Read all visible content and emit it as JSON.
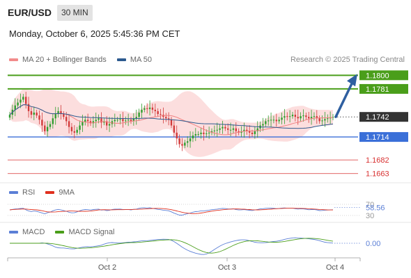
{
  "header": {
    "symbol": "EUR/USD",
    "timeframe": "30 MIN",
    "datetime": "Monday, October 6, 2025 5:45:36 PM CET"
  },
  "legend_main": [
    {
      "label": "MA 20 + Bollinger Bands",
      "color": "#f28b8b"
    },
    {
      "label": "MA 50",
      "color": "#2c5a8f"
    }
  ],
  "legend_rsi": [
    {
      "label": "RSI",
      "color": "#5b7fd6"
    },
    {
      "label": "9MA",
      "color": "#e0301e"
    }
  ],
  "legend_macd": [
    {
      "label": "MACD",
      "color": "#5b7fd6"
    },
    {
      "label": "MACD Signal",
      "color": "#4a9e1a"
    }
  ],
  "research": "Research © 2025 Trading Central",
  "colors": {
    "resistance": "#4a9e1a",
    "support": "#3a6fd8",
    "level_red": "#d83030",
    "current": "#333333",
    "arrow": "#2f5fa0",
    "bull": "#2e9e2e",
    "bear": "#d23a3a",
    "band_fill": "#fbd3d3"
  },
  "chart_data": [
    {
      "type": "candlestick",
      "x_ticks": [
        "Oct 2",
        "Oct 3",
        "Oct 4"
      ],
      "ylim": [
        1.1655,
        1.181
      ],
      "levels": [
        {
          "value": 1.18,
          "label": "1.1800",
          "kind": "resistance"
        },
        {
          "value": 1.1781,
          "label": "1.1781",
          "kind": "resistance"
        },
        {
          "value": 1.1742,
          "label": "1.1742",
          "kind": "current"
        },
        {
          "value": 1.1714,
          "label": "1.1714",
          "kind": "support"
        },
        {
          "value": 1.1682,
          "label": "1.1682",
          "kind": "target"
        },
        {
          "value": 1.1663,
          "label": "1.1663",
          "kind": "target"
        }
      ],
      "close": [
        1.1745,
        1.1752,
        1.1758,
        1.1762,
        1.1766,
        1.177,
        1.176,
        1.175,
        1.1745,
        1.1748,
        1.1744,
        1.1738,
        1.173,
        1.1722,
        1.1728,
        1.1732,
        1.174,
        1.1746,
        1.175,
        1.1746,
        1.1742,
        1.1736,
        1.1728,
        1.1722,
        1.172,
        1.1724,
        1.173,
        1.1735,
        1.1738,
        1.1736,
        1.1733,
        1.1736,
        1.1738,
        1.174,
        1.1734,
        1.1736,
        1.173,
        1.1732,
        1.1736,
        1.1738,
        1.1738,
        1.1739,
        1.1736,
        1.1737,
        1.1738,
        1.1736,
        1.174,
        1.1742,
        1.1748,
        1.1752,
        1.1754,
        1.1753,
        1.1755,
        1.1752,
        1.175,
        1.1746,
        1.1745,
        1.1742,
        1.174,
        1.1738,
        1.173,
        1.172,
        1.1712,
        1.1704,
        1.1702,
        1.1706,
        1.1708,
        1.1712,
        1.1716,
        1.1718,
        1.1718,
        1.172,
        1.1718,
        1.1719,
        1.172,
        1.1722,
        1.1723,
        1.1724,
        1.1726,
        1.1728,
        1.1726,
        1.1724,
        1.1724,
        1.1726,
        1.1722,
        1.172,
        1.1722,
        1.1724,
        1.1722,
        1.172,
        1.1718,
        1.1722,
        1.1726,
        1.173,
        1.1732,
        1.1736,
        1.1737,
        1.1738,
        1.1738,
        1.1736,
        1.1738,
        1.1741,
        1.1743,
        1.1742,
        1.1743,
        1.1745,
        1.1742,
        1.174,
        1.1743,
        1.1744,
        1.1742,
        1.174,
        1.1742,
        1.1743,
        1.174,
        1.1736,
        1.1737,
        1.1739,
        1.174,
        1.1741,
        1.1742
      ],
      "arrow": {
        "from": 1.1742,
        "to": 1.18
      }
    },
    {
      "type": "line",
      "name": "RSI",
      "ticks": [
        70,
        30
      ],
      "current": "58.56",
      "ylim": [
        20,
        80
      ]
    },
    {
      "type": "line",
      "name": "MACD",
      "ticks": [
        0
      ],
      "current": "0.00"
    }
  ]
}
